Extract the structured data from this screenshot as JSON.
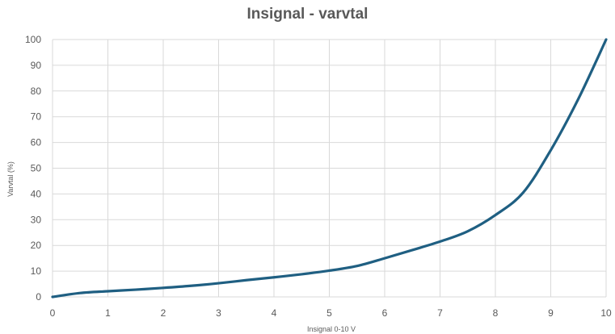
{
  "chart_data": {
    "type": "line",
    "title": "Insignal - varvtal",
    "xlabel": "Insignal 0-10 V",
    "ylabel": "Varvtal (%)",
    "xlim": [
      0,
      10
    ],
    "ylim": [
      0,
      100
    ],
    "x_ticks": [
      "0",
      "1",
      "2",
      "3",
      "4",
      "5",
      "6",
      "7",
      "8",
      "9",
      "10"
    ],
    "y_ticks": [
      "0",
      "10",
      "20",
      "30",
      "40",
      "50",
      "60",
      "70",
      "80",
      "90",
      "100"
    ],
    "grid": true,
    "series_color": "#1f5f82",
    "series": [
      {
        "x": [
          0,
          0.5,
          1,
          1.5,
          2,
          2.5,
          3,
          3.5,
          4,
          4.5,
          5,
          5.5,
          6,
          6.5,
          7,
          7.5,
          8,
          8.5,
          9,
          9.5,
          10
        ],
        "values": [
          0,
          1.5,
          2.2,
          2.8,
          3.5,
          4.3,
          5.3,
          6.5,
          7.6,
          8.8,
          10.2,
          12,
          15,
          18.2,
          21.5,
          25.5,
          31.8,
          40.5,
          57,
          77,
          100
        ]
      }
    ]
  }
}
